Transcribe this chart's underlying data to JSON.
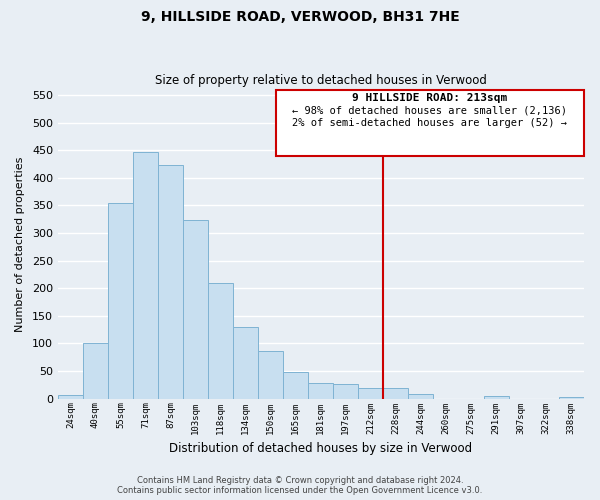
{
  "title": "9, HILLSIDE ROAD, VERWOOD, BH31 7HE",
  "subtitle": "Size of property relative to detached houses in Verwood",
  "xlabel": "Distribution of detached houses by size in Verwood",
  "ylabel": "Number of detached properties",
  "bar_labels": [
    "24sqm",
    "40sqm",
    "55sqm",
    "71sqm",
    "87sqm",
    "103sqm",
    "118sqm",
    "134sqm",
    "150sqm",
    "165sqm",
    "181sqm",
    "197sqm",
    "212sqm",
    "228sqm",
    "244sqm",
    "260sqm",
    "275sqm",
    "291sqm",
    "307sqm",
    "322sqm",
    "338sqm"
  ],
  "bar_values": [
    7,
    101,
    354,
    446,
    423,
    323,
    209,
    130,
    86,
    48,
    29,
    26,
    20,
    19,
    9,
    0,
    0,
    4,
    0,
    0,
    3
  ],
  "bar_color": "#c8dff0",
  "bar_edge_color": "#7fb3d3",
  "vline_color": "#cc0000",
  "ylim": [
    0,
    560
  ],
  "yticks": [
    0,
    50,
    100,
    150,
    200,
    250,
    300,
    350,
    400,
    450,
    500,
    550
  ],
  "annotation_title": "9 HILLSIDE ROAD: 213sqm",
  "annotation_line1": "← 98% of detached houses are smaller (2,136)",
  "annotation_line2": "2% of semi-detached houses are larger (52) →",
  "footer_line1": "Contains HM Land Registry data © Crown copyright and database right 2024.",
  "footer_line2": "Contains public sector information licensed under the Open Government Licence v3.0.",
  "bg_color": "#e8eef4",
  "plot_bg_color": "#e8eef4",
  "grid_color": "#ffffff"
}
